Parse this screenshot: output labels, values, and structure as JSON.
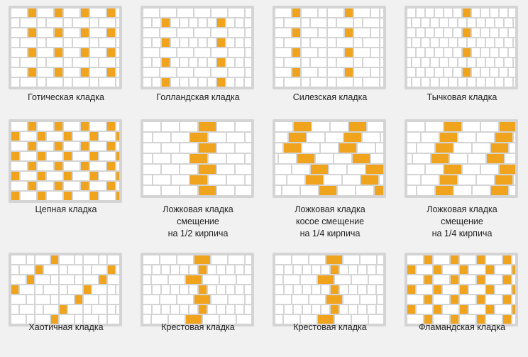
{
  "colors": {
    "brick": "#ffffff",
    "accent": "#f0a31c",
    "mortar": "#c9c9c9",
    "text": "#222222"
  },
  "patterns": [
    {
      "id": "gothic",
      "lines": [
        "Готическая кладка"
      ]
    },
    {
      "id": "dutch",
      "lines": [
        "Голландская кладка"
      ]
    },
    {
      "id": "silesian",
      "lines": [
        "Силезская кладка"
      ]
    },
    {
      "id": "header",
      "lines": [
        "Тычковая кладка"
      ]
    },
    {
      "id": "chain",
      "lines": [
        "Цепная кладка"
      ]
    },
    {
      "id": "stretcher-half",
      "lines": [
        "Ложковая кладка",
        "смещение",
        "на 1/2 кирпича"
      ]
    },
    {
      "id": "stretcher-diag",
      "lines": [
        "Ложковая кладка",
        "косое смещение",
        "на 1/4 кирпича"
      ]
    },
    {
      "id": "stretcher-quarter",
      "lines": [
        "Ложковая кладка",
        "смещение",
        "на 1/4 кирпича"
      ]
    },
    {
      "id": "chaotic",
      "lines": [
        "Хаотичная кладка"
      ]
    },
    {
      "id": "cross-1",
      "lines": [
        "Крестовая кладка"
      ]
    },
    {
      "id": "cross-2",
      "lines": [
        "Крестовая кладка"
      ]
    },
    {
      "id": "flemish",
      "lines": [
        "Фламандская кладка"
      ]
    }
  ]
}
